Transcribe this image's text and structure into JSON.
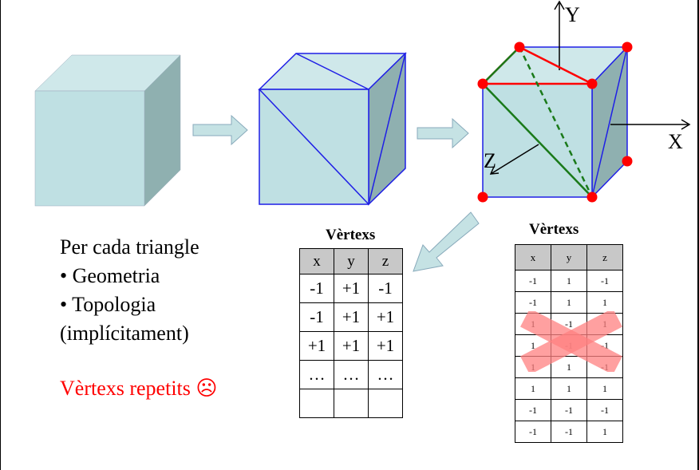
{
  "axes": {
    "y": "Y",
    "x": "X",
    "z": "Z"
  },
  "left_text": {
    "lines": [
      "Per cada triangle",
      "• Geometria",
      "• Topologia",
      "(implícitament)"
    ],
    "repeated": "Vèrtexs repetits ☹"
  },
  "table_indexed": {
    "title": "Vèrtexs",
    "headers": [
      "x",
      "y",
      "z"
    ],
    "rows": [
      [
        "-1",
        "+1",
        "-1"
      ],
      [
        "-1",
        "+1",
        "+1"
      ],
      [
        "+1",
        "+1",
        "+1"
      ],
      [
        "…",
        "…",
        "…"
      ],
      [
        "",
        "",
        ""
      ]
    ]
  },
  "table_repeated": {
    "title": "Vèrtexs",
    "headers": [
      "x",
      "y",
      "z"
    ],
    "rows": [
      [
        "-1",
        "1",
        "-1"
      ],
      [
        "-1",
        "1",
        "1"
      ],
      [
        "1",
        "-1",
        "1"
      ],
      [
        "1",
        "-1",
        "-1"
      ],
      [
        "1",
        "1",
        "-1"
      ],
      [
        "1",
        "1",
        "1"
      ],
      [
        "-1",
        "-1",
        "-1"
      ],
      [
        "-1",
        "-1",
        "1"
      ]
    ]
  },
  "colors": {
    "cube_front": "#bfe0e3",
    "cube_top": "#cfe8ea",
    "cube_side": "#8fb0b0",
    "wire": "#1f1fe6",
    "vertex": "#ff0000",
    "green_edge": "#1a7a1a",
    "arrow_fill": "#c5e2e4",
    "cross": "#ff9a9a"
  }
}
